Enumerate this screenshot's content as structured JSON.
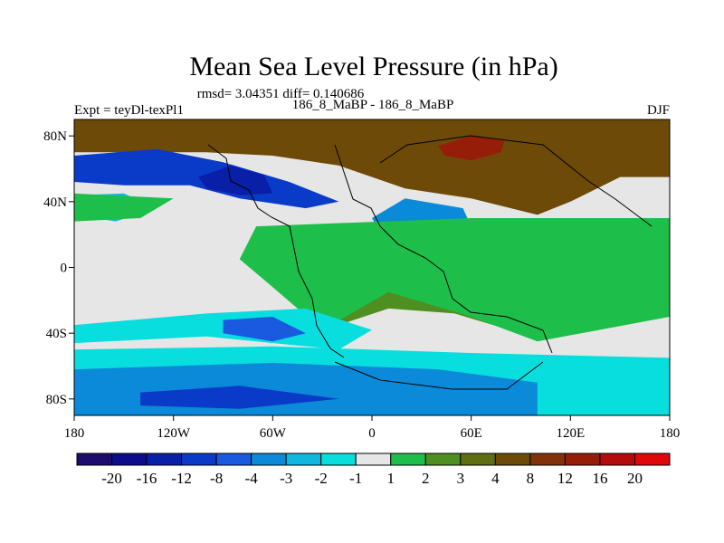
{
  "chart_data": {
    "type": "heatmap",
    "title": "Mean Sea Level Pressure (in hPa)",
    "stats": "rmsd= 3.04351 diff= 0.140686",
    "left_label": "Expt = teyDl-texPl1",
    "center_label": "186_8_MaBP - 186_8_MaBP",
    "right_label": "DJF",
    "x_ticks": [
      "180",
      "120W",
      "60W",
      "0",
      "60E",
      "120E",
      "180"
    ],
    "x_values": [
      -180,
      -120,
      -60,
      0,
      60,
      120,
      180
    ],
    "y_ticks": [
      "80N",
      "40N",
      "0",
      "40S",
      "80S"
    ],
    "y_values": [
      80,
      40,
      0,
      -40,
      -80
    ],
    "xlim": [
      -180,
      180
    ],
    "ylim": [
      -90,
      90
    ],
    "colorbar": {
      "levels": [
        "-20",
        "-16",
        "-12",
        "-8",
        "-4",
        "-3",
        "-2",
        "-1",
        "1",
        "2",
        "3",
        "4",
        "8",
        "12",
        "16",
        "20"
      ],
      "colors": [
        "#1e0c6e",
        "#0c0c8c",
        "#0a1fa8",
        "#0a3ac8",
        "#1a5ae0",
        "#0a8ad8",
        "#10b8e0",
        "#08dede",
        "#e6e6e6",
        "#1ebe4a",
        "#4f8e20",
        "#5e6e10",
        "#6e4a08",
        "#823208",
        "#961e08",
        "#b40c0c",
        "#e00808"
      ]
    },
    "regions": [
      {
        "name": "positive-8-12-north",
        "level_index": 12,
        "points": [
          [
            -180,
            90
          ],
          [
            180,
            90
          ],
          [
            180,
            55
          ],
          [
            150,
            55
          ],
          [
            120,
            40
          ],
          [
            100,
            32
          ],
          [
            60,
            42
          ],
          [
            20,
            48
          ],
          [
            -20,
            62
          ],
          [
            -60,
            68
          ],
          [
            -100,
            70
          ],
          [
            -140,
            70
          ],
          [
            -180,
            70
          ]
        ]
      },
      {
        "name": "positive-12-16-siberia",
        "level_index": 14,
        "points": [
          [
            40,
            74
          ],
          [
            60,
            80
          ],
          [
            80,
            77
          ],
          [
            78,
            70
          ],
          [
            60,
            65
          ],
          [
            44,
            68
          ]
        ]
      },
      {
        "name": "negative-north-pacific-atlantic",
        "level_index": 3,
        "points": [
          [
            -180,
            68
          ],
          [
            -130,
            72
          ],
          [
            -90,
            64
          ],
          [
            -50,
            52
          ],
          [
            -20,
            40
          ],
          [
            -40,
            36
          ],
          [
            -80,
            42
          ],
          [
            -110,
            50
          ],
          [
            -150,
            50
          ],
          [
            -180,
            52
          ]
        ]
      },
      {
        "name": "negative-core-north",
        "level_index": 2,
        "points": [
          [
            -105,
            55
          ],
          [
            -85,
            62
          ],
          [
            -65,
            56
          ],
          [
            -60,
            45
          ],
          [
            -80,
            44
          ],
          [
            -100,
            48
          ]
        ]
      },
      {
        "name": "negative-mediterranean",
        "level_index": 5,
        "points": [
          [
            0,
            30
          ],
          [
            20,
            42
          ],
          [
            55,
            36
          ],
          [
            60,
            25
          ],
          [
            45,
            12
          ],
          [
            20,
            14
          ],
          [
            5,
            22
          ]
        ]
      },
      {
        "name": "negative-core-med",
        "level_index": 3,
        "points": [
          [
            38,
            24
          ],
          [
            48,
            28
          ],
          [
            55,
            22
          ],
          [
            48,
            15
          ],
          [
            40,
            18
          ]
        ]
      },
      {
        "name": "negative-nw-pacific",
        "level_index": 6,
        "points": [
          [
            -180,
            44
          ],
          [
            -150,
            45
          ],
          [
            -130,
            36
          ],
          [
            -155,
            28
          ],
          [
            -180,
            32
          ]
        ]
      },
      {
        "name": "positive-equatorial",
        "level_index": 10,
        "points": [
          [
            -60,
            15
          ],
          [
            -30,
            12
          ],
          [
            10,
            8
          ],
          [
            60,
            -15
          ],
          [
            100,
            -32
          ],
          [
            90,
            -40
          ],
          [
            50,
            -28
          ],
          [
            10,
            -25
          ],
          [
            -20,
            -35
          ],
          [
            -40,
            -20
          ],
          [
            -60,
            -5
          ]
        ]
      },
      {
        "name": "positive-africa-green",
        "level_index": 9,
        "points": [
          [
            -70,
            25
          ],
          [
            60,
            30
          ],
          [
            180,
            30
          ],
          [
            180,
            -30
          ],
          [
            100,
            -45
          ],
          [
            60,
            -30
          ],
          [
            10,
            -15
          ],
          [
            -30,
            -38
          ],
          [
            -60,
            -12
          ],
          [
            -80,
            5
          ]
        ]
      },
      {
        "name": "positive-nw-green",
        "level_index": 9,
        "points": [
          [
            -180,
            45
          ],
          [
            -120,
            42
          ],
          [
            -140,
            30
          ],
          [
            -180,
            28
          ]
        ]
      },
      {
        "name": "negative-south-pacific",
        "level_index": 7,
        "points": [
          [
            -180,
            -35
          ],
          [
            -100,
            -28
          ],
          [
            -40,
            -25
          ],
          [
            0,
            -38
          ],
          [
            -20,
            -50
          ],
          [
            -100,
            -42
          ],
          [
            -180,
            -46
          ]
        ]
      },
      {
        "name": "negative-south-core",
        "level_index": 4,
        "points": [
          [
            -90,
            -32
          ],
          [
            -60,
            -30
          ],
          [
            -40,
            -40
          ],
          [
            -60,
            -45
          ],
          [
            -90,
            -40
          ]
        ]
      },
      {
        "name": "negative-southern-ocean",
        "level_index": 7,
        "points": [
          [
            -180,
            -50
          ],
          [
            -60,
            -48
          ],
          [
            60,
            -52
          ],
          [
            180,
            -55
          ],
          [
            180,
            -90
          ],
          [
            -180,
            -90
          ]
        ]
      },
      {
        "name": "negative-southern-mid",
        "level_index": 5,
        "points": [
          [
            -180,
            -62
          ],
          [
            -60,
            -58
          ],
          [
            40,
            -62
          ],
          [
            100,
            -70
          ],
          [
            100,
            -90
          ],
          [
            -180,
            -90
          ]
        ]
      },
      {
        "name": "negative-southern-core",
        "level_index": 3,
        "points": [
          [
            -140,
            -76
          ],
          [
            -80,
            -72
          ],
          [
            -20,
            -80
          ],
          [
            -80,
            -86
          ],
          [
            -140,
            -84
          ]
        ]
      }
    ]
  }
}
